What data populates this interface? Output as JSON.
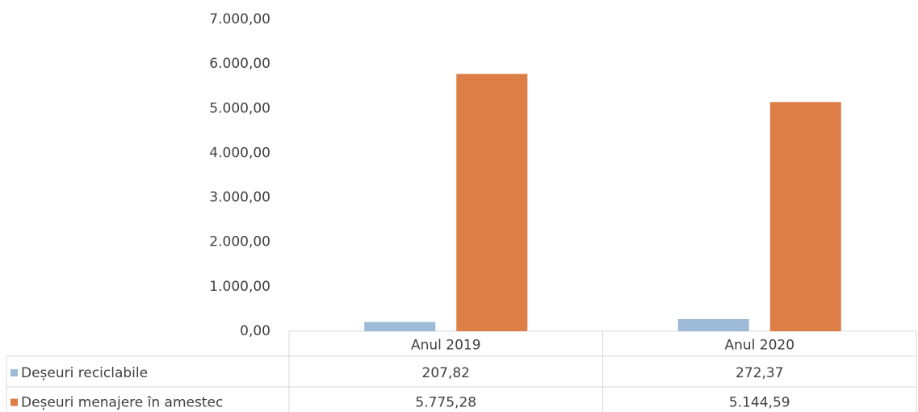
{
  "chart_data": {
    "type": "bar",
    "categories": [
      "Anul 2019",
      "Anul 2020"
    ],
    "series": [
      {
        "name": "Deșeuri reciclabile",
        "color": "#9dbbd9",
        "values": [
          207.82,
          272.37
        ],
        "value_labels": [
          "207,82",
          "272,37"
        ]
      },
      {
        "name": "Deșeuri menajere în amestec",
        "color": "#dc7e45",
        "values": [
          5775.28,
          5144.59
        ],
        "value_labels": [
          "5.775,28",
          "5.144,59"
        ]
      }
    ],
    "ylim": [
      0,
      7000
    ],
    "yticks": [
      {
        "value": 0,
        "label": "0,00"
      },
      {
        "value": 1000,
        "label": "1.000,00"
      },
      {
        "value": 2000,
        "label": "2.000,00"
      },
      {
        "value": 3000,
        "label": "3.000,00"
      },
      {
        "value": 4000,
        "label": "4.000,00"
      },
      {
        "value": 5000,
        "label": "5.000,00"
      },
      {
        "value": 6000,
        "label": "6.000,00"
      },
      {
        "value": 7000,
        "label": "7.000,00"
      }
    ],
    "grid": false
  }
}
